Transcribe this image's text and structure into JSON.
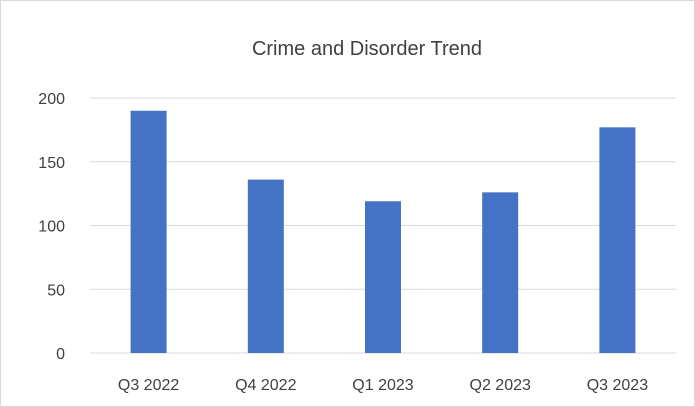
{
  "chart_data": {
    "type": "bar",
    "title": "Crime and Disorder Trend",
    "categories": [
      "Q3 2022",
      "Q4 2022",
      "Q1 2023",
      "Q2 2023",
      "Q3 2023"
    ],
    "values": [
      190,
      136,
      119,
      126,
      177
    ],
    "yticks": [
      "0",
      "50",
      "100",
      "150",
      "200"
    ],
    "ylim": [
      0,
      200
    ],
    "grid": true,
    "legend": "none",
    "bar_color": "#4472c4",
    "grid_color": "#d9d9d9",
    "text_color": "#404040"
  }
}
